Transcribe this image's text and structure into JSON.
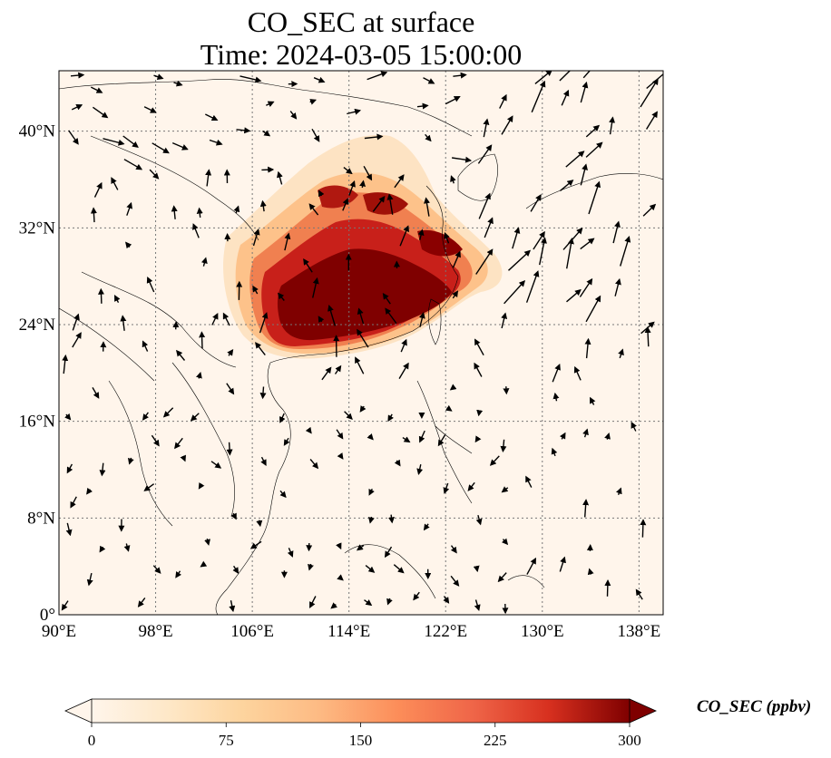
{
  "title": {
    "line1": "CO_SEC at surface",
    "line2": "Time: 2024-03-05 15:00:00"
  },
  "map": {
    "lon_ticks": [
      "90°E",
      "98°E",
      "106°E",
      "114°E",
      "122°E",
      "130°E",
      "138°E"
    ],
    "lat_ticks": [
      "0°",
      "8°N",
      "16°N",
      "24°N",
      "32°N",
      "40°N"
    ],
    "lon_range": [
      90,
      140
    ],
    "lat_range": [
      0,
      45
    ],
    "grid": true,
    "background_color": "#fff5eb",
    "colormap": "OrRd"
  },
  "colorbar": {
    "label": "CO_SEC (ppbv)",
    "ticks": [
      "0",
      "75",
      "150",
      "225",
      "300"
    ],
    "range": [
      0,
      300
    ],
    "extend": "both",
    "colors": [
      "#fff5eb",
      "#fdd49e",
      "#fdbb84",
      "#fc8d59",
      "#ef6548",
      "#d7301f",
      "#b30000",
      "#7f0000"
    ]
  }
}
